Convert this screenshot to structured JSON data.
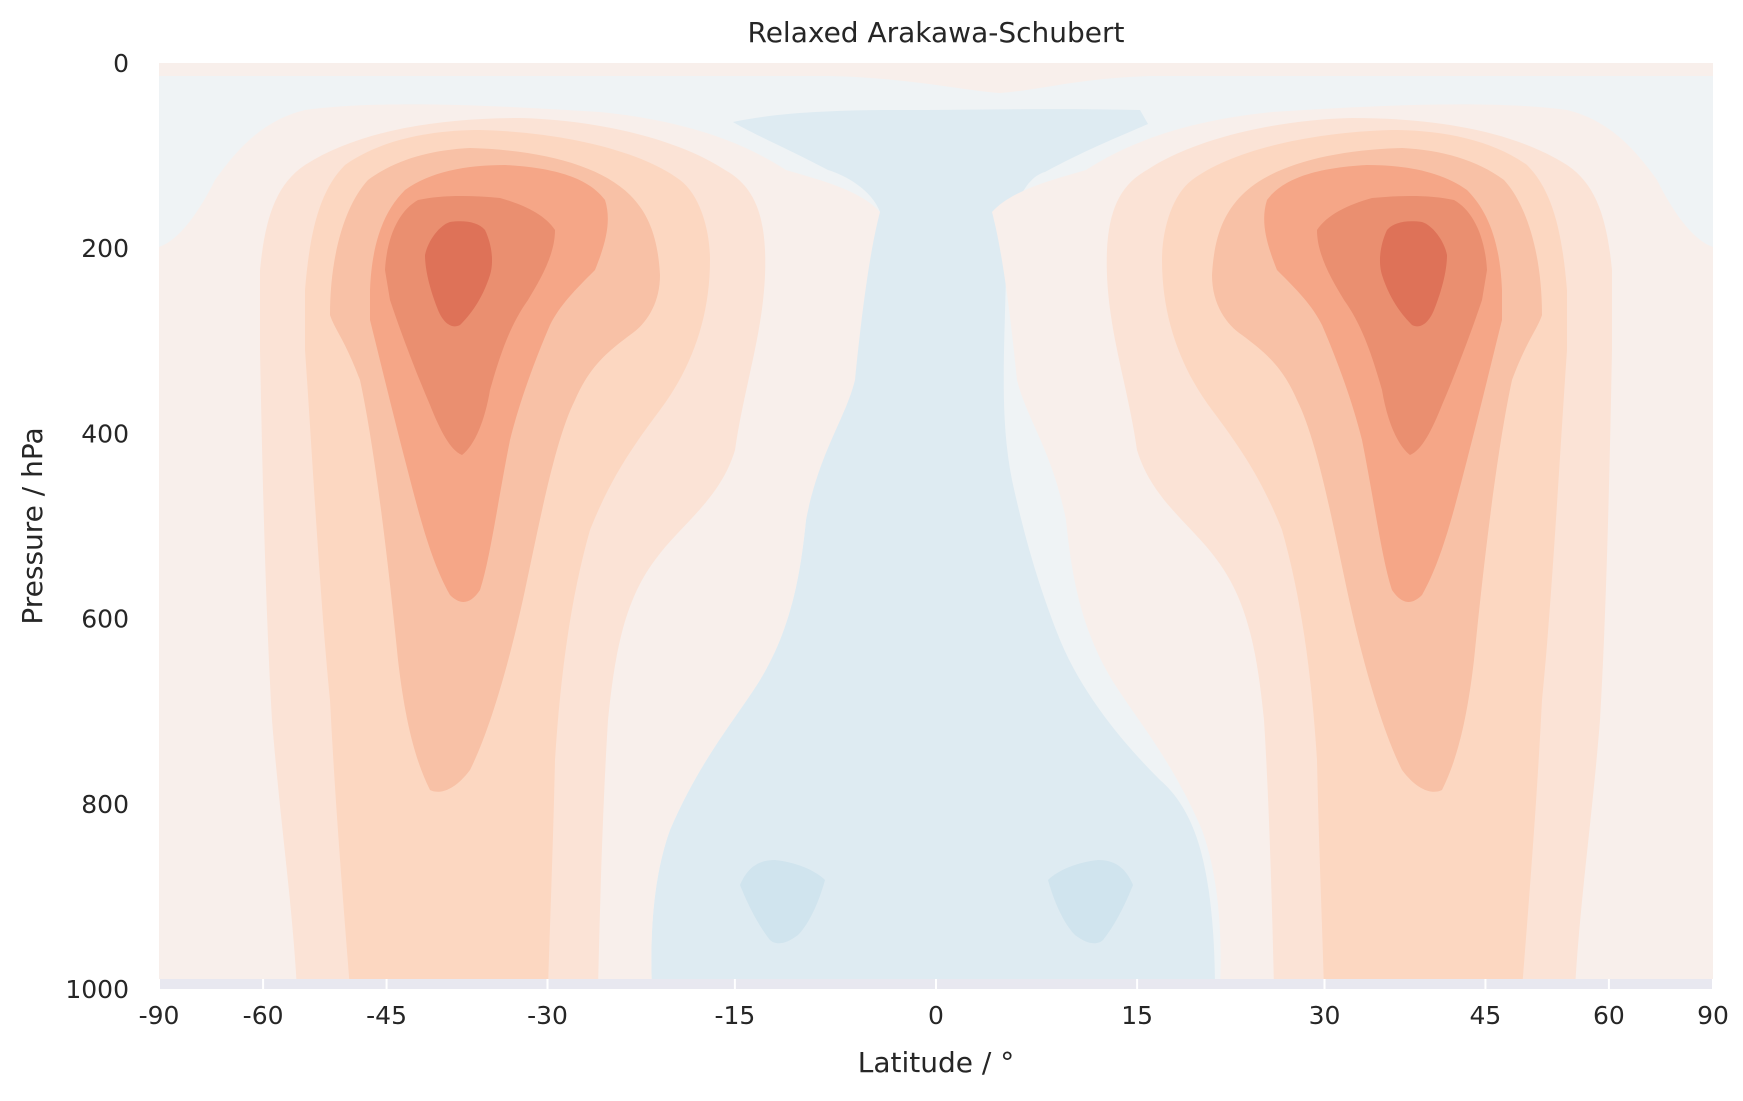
{
  "chart_data": {
    "type": "heatmap",
    "subtype": "filled-contour",
    "title": "Relaxed Arakawa-Schubert",
    "xlabel": "Latitude / °",
    "ylabel": "Pressure / hPa",
    "xlim": [
      -90,
      90
    ],
    "ylim": [
      1000,
      0
    ],
    "y_inverted": true,
    "x_ticks": [
      -90,
      -60,
      -45,
      -30,
      -15,
      0,
      15,
      30,
      45,
      60,
      90
    ],
    "x_tick_labels": [
      "-90",
      "-60",
      "-45",
      "-30",
      "-15",
      "0",
      "15",
      "30",
      "45",
      "60",
      "90"
    ],
    "y_ticks": [
      0,
      200,
      400,
      600,
      800,
      1000
    ],
    "y_tick_labels": [
      "0",
      "200",
      "400",
      "600",
      "800",
      "1000"
    ],
    "x_scale": "arcsine (ticks spaced as sin(latitude))",
    "grid": false,
    "colormap": "RdBu_r (diverging, blue negative, red positive)",
    "level_colors": [
      "#d0e4ee",
      "#deebf2",
      "#eff3f5",
      "#f8efeb",
      "#fbe3d6",
      "#fcd7c1",
      "#f8c1a6",
      "#f5a687",
      "#ea8f70",
      "#de7258"
    ],
    "features": [
      {
        "kind": "maximum",
        "lat": -37,
        "pressure": 240
      },
      {
        "kind": "maximum",
        "lat": 37,
        "pressure": 240
      },
      {
        "kind": "minimum",
        "lat": -12,
        "pressure": 900
      },
      {
        "kind": "minimum",
        "lat": 12,
        "pressure": 900
      }
    ]
  }
}
